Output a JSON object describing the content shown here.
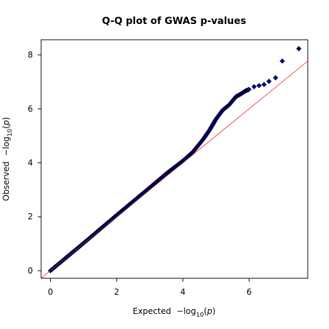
{
  "chart_data": {
    "type": "scatter",
    "title": "Q-Q plot of GWAS p-values",
    "xlabel": {
      "prefix": "Expected",
      "minus": "−",
      "log": "log",
      "sub": "10",
      "open": "(",
      "var": "p",
      "close": ")"
    },
    "ylabel": {
      "prefix": "Observed",
      "minus": "−",
      "log": "log",
      "sub": "10",
      "open": "(",
      "var": "p",
      "close": ")"
    },
    "xlim": [
      -0.28,
      7.77
    ],
    "ylim": [
      -0.28,
      8.56
    ],
    "xticks": [
      0,
      2,
      4,
      6
    ],
    "yticks": [
      0,
      2,
      4,
      6,
      8
    ],
    "grid": false,
    "colors": {
      "point_fill": "#0a0a8a",
      "point_edge": "#000033",
      "reference_line": "#ff4a4a",
      "axes": "#000000"
    },
    "reference_line": {
      "x": [
        -0.28,
        7.77
      ],
      "y": [
        -0.28,
        7.77
      ]
    },
    "curve_points": [
      {
        "x": 0.0,
        "y": 0.0
      },
      {
        "x": 1.0,
        "y": 1.02
      },
      {
        "x": 2.0,
        "y": 2.06
      },
      {
        "x": 3.0,
        "y": 3.08
      },
      {
        "x": 3.5,
        "y": 3.6
      },
      {
        "x": 4.0,
        "y": 4.07
      },
      {
        "x": 4.3,
        "y": 4.4
      },
      {
        "x": 4.6,
        "y": 4.85
      },
      {
        "x": 4.8,
        "y": 5.2
      },
      {
        "x": 5.0,
        "y": 5.62
      },
      {
        "x": 5.2,
        "y": 5.95
      },
      {
        "x": 5.4,
        "y": 6.15
      },
      {
        "x": 5.6,
        "y": 6.45
      },
      {
        "x": 5.75,
        "y": 6.55
      },
      {
        "x": 5.9,
        "y": 6.67
      },
      {
        "x": 6.0,
        "y": 6.72
      }
    ],
    "top_points": [
      {
        "x": 6.15,
        "y": 6.82
      },
      {
        "x": 6.3,
        "y": 6.86
      },
      {
        "x": 6.45,
        "y": 6.9
      },
      {
        "x": 6.6,
        "y": 7.02
      },
      {
        "x": 6.8,
        "y": 7.15
      },
      {
        "x": 7.0,
        "y": 7.77
      },
      {
        "x": 7.5,
        "y": 8.23
      }
    ]
  }
}
